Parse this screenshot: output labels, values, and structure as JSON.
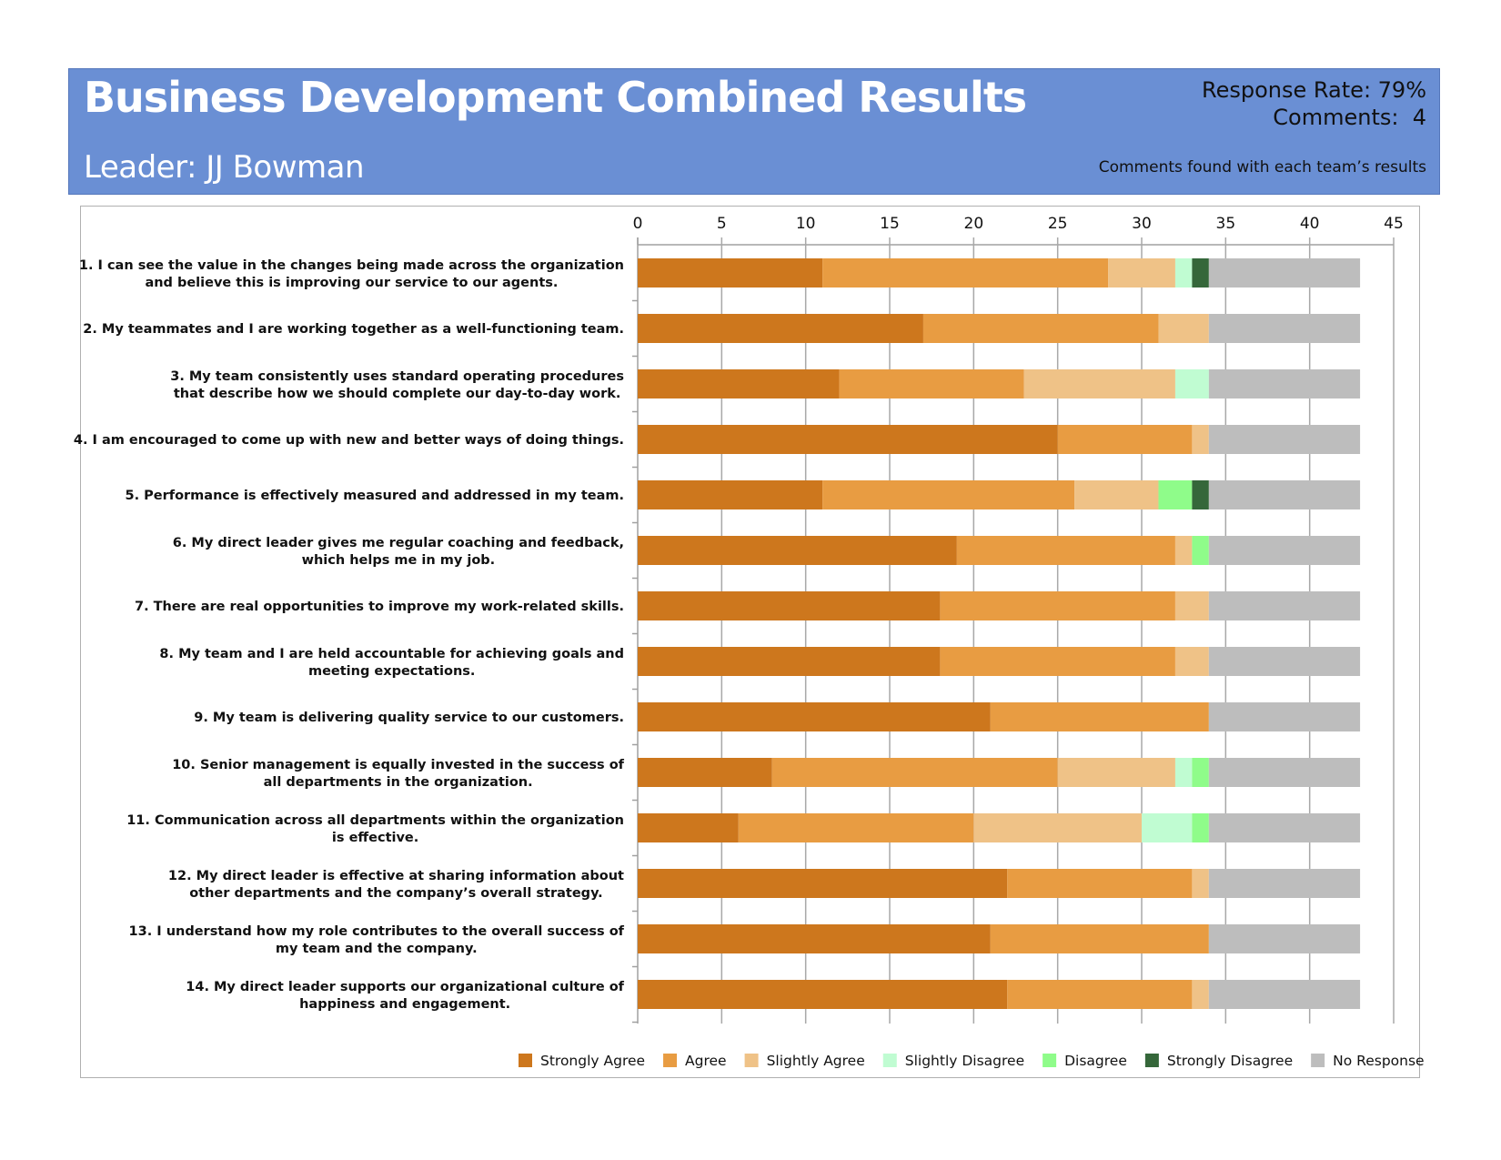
{
  "header": {
    "title": "Business Development Combined Results",
    "leader": "Leader: JJ Bowman",
    "response_rate": "Response Rate: 79%",
    "comments": "Comments:  4",
    "note": "Comments found with each team’s results",
    "background_color": "#6a8fd4"
  },
  "chart_data": {
    "type": "bar",
    "orientation": "horizontal",
    "stacked": true,
    "title": "",
    "xlabel": "",
    "ylabel": "",
    "xlim": [
      0,
      45
    ],
    "xticks": [
      0,
      5,
      10,
      15,
      20,
      25,
      30,
      35,
      40,
      45
    ],
    "x_axis_position": "top",
    "grid": true,
    "legend_position": "bottom",
    "categories": [
      [
        "1. I can see the value in the changes being made across the organization",
        "and believe this is improving our service to our agents."
      ],
      [
        "2. My teammates and I are working together as a well-functioning team."
      ],
      [
        "3. My team consistently uses standard operating procedures",
        "that describe how we should complete our day-to-day work."
      ],
      [
        "4. I am encouraged to come up with new and better ways of doing things."
      ],
      [
        "5. Performance is effectively measured and addressed in my team."
      ],
      [
        "6. My direct leader gives me regular coaching and feedback,",
        "which helps me in my job."
      ],
      [
        "7. There are real opportunities to improve my work-related skills."
      ],
      [
        "8. My team and I are held accountable for achieving goals and",
        "meeting expectations."
      ],
      [
        "9. My team is delivering quality service to our customers."
      ],
      [
        "10. Senior management is equally invested in the success of",
        "all departments in the organization."
      ],
      [
        "11. Communication across all departments within the organization",
        "is effective."
      ],
      [
        "12. My direct leader is effective at sharing information about",
        "other departments and the company’s overall strategy."
      ],
      [
        "13. I understand how my role contributes to the overall success of",
        "my team and the company."
      ],
      [
        "14. My direct leader supports our organizational culture of",
        "happiness and engagement."
      ]
    ],
    "series": [
      {
        "name": "Strongly Agree",
        "color": "#cd771d",
        "values": [
          11,
          17,
          12,
          25,
          11,
          19,
          18,
          18,
          21,
          8,
          6,
          22,
          21,
          22
        ]
      },
      {
        "name": "Agree",
        "color": "#e89c42",
        "values": [
          17,
          14,
          11,
          8,
          15,
          13,
          14,
          14,
          13,
          17,
          14,
          11,
          13,
          11
        ]
      },
      {
        "name": "Slightly Agree",
        "color": "#efc287",
        "values": [
          4,
          3,
          9,
          1,
          5,
          1,
          2,
          2,
          0,
          7,
          10,
          1,
          0,
          1
        ]
      },
      {
        "name": "Slightly Disagree",
        "color": "#c0fcd2",
        "values": [
          1,
          0,
          2,
          0,
          0,
          0,
          0,
          0,
          0,
          1,
          3,
          0,
          0,
          0
        ]
      },
      {
        "name": "Disagree",
        "color": "#8ffc8a",
        "values": [
          0,
          0,
          0,
          0,
          2,
          1,
          0,
          0,
          0,
          1,
          1,
          0,
          0,
          0
        ]
      },
      {
        "name": "Strongly Disagree",
        "color": "#35673a",
        "values": [
          1,
          0,
          0,
          0,
          1,
          0,
          0,
          0,
          0,
          0,
          0,
          0,
          0,
          0
        ]
      },
      {
        "name": "No Response",
        "color": "#bdbdbd",
        "values": [
          9,
          9,
          9,
          9,
          9,
          9,
          9,
          9,
          9,
          9,
          9,
          9,
          9,
          9
        ]
      }
    ]
  }
}
